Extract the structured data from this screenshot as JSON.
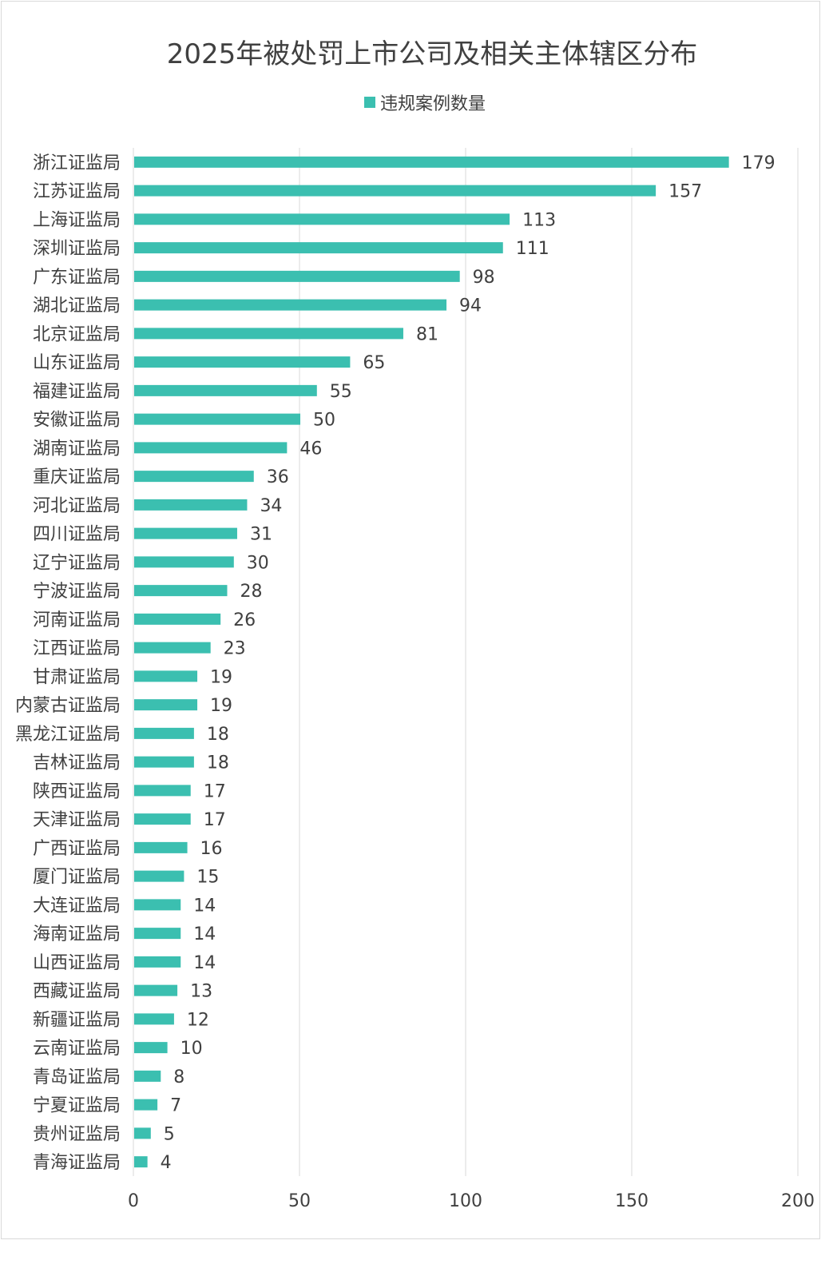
{
  "chart_data": {
    "type": "bar",
    "orientation": "horizontal",
    "title": "2025年被处罚上市公司及相关主体辖区分布",
    "legend": {
      "position": "top",
      "label": "违规案例数量"
    },
    "color": "#3bbfb0",
    "grid": true,
    "xlim": [
      0,
      200
    ],
    "xticks": [
      "0",
      "50",
      "100",
      "150",
      "200"
    ],
    "categories": [
      "浙江证监局",
      "江苏证监局",
      "上海证监局",
      "深圳证监局",
      "广东证监局",
      "湖北证监局",
      "北京证监局",
      "山东证监局",
      "福建证监局",
      "安徽证监局",
      "湖南证监局",
      "重庆证监局",
      "河北证监局",
      "四川证监局",
      "辽宁证监局",
      "宁波证监局",
      "河南证监局",
      "江西证监局",
      "甘肃证监局",
      "内蒙古证监局",
      "黑龙江证监局",
      "吉林证监局",
      "陕西证监局",
      "天津证监局",
      "广西证监局",
      "厦门证监局",
      "大连证监局",
      "海南证监局",
      "山西证监局",
      "西藏证监局",
      "新疆证监局",
      "云南证监局",
      "青岛证监局",
      "宁夏证监局",
      "贵州证监局",
      "青海证监局"
    ],
    "series": [
      {
        "name": "违规案例数量",
        "values": [
          179,
          157,
          113,
          111,
          98,
          94,
          81,
          65,
          55,
          50,
          46,
          36,
          34,
          31,
          30,
          28,
          26,
          23,
          19,
          19,
          18,
          18,
          17,
          17,
          16,
          15,
          14,
          14,
          14,
          13,
          12,
          10,
          8,
          7,
          5,
          4
        ]
      }
    ]
  }
}
